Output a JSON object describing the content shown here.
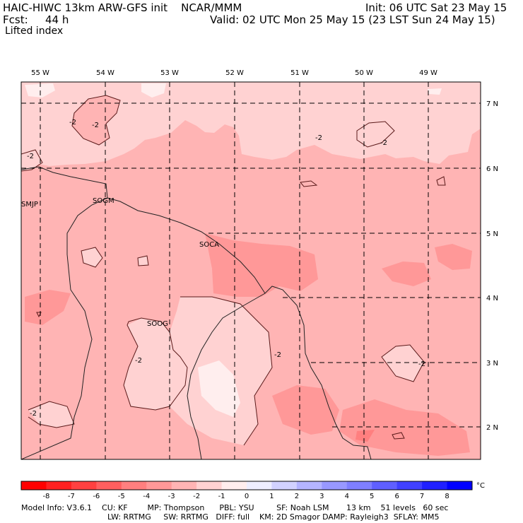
{
  "header": {
    "model_title": "HAIC-HIWC 13km ARW-GFS init    NCAR/MMM",
    "init": "Init: 06 UTC Sat 23 May 15",
    "fcst_label": "Fcst:",
    "fcst_hours": "44 h",
    "valid": "Valid: 02 UTC Mon 25 May 15 (23 LST Sun 24 May 15)",
    "field_name": "Lifted index"
  },
  "map": {
    "lon_labels": [
      "55 W",
      "54 W",
      "53 W",
      "52 W",
      "51 W",
      "50 W",
      "49 W"
    ],
    "lat_labels": [
      "7 N",
      "6 N",
      "5 N",
      "4 N",
      "3 N",
      "2 N"
    ],
    "stations": [
      "SMJP",
      "SOGM",
      "SOCA",
      "SOOG"
    ],
    "contour_labels": [
      "-2",
      "-2",
      "-2",
      "-2",
      "-2",
      "-2",
      "-2",
      "-2",
      "-2"
    ]
  },
  "colorbar": {
    "tick_labels": [
      "-8",
      "-7",
      "-6",
      "-5",
      "-4",
      "-3",
      "-2",
      "-1",
      "0",
      "1",
      "2",
      "3",
      "4",
      "5",
      "6",
      "7",
      "8"
    ],
    "unit": "°C",
    "colors": [
      "#ff0000",
      "#ff2020",
      "#ff4040",
      "#ff5f5f",
      "#ff7f7f",
      "#ff9898",
      "#ffb4b4",
      "#ffd2d2",
      "#ffeeee",
      "#eeeeff",
      "#d2d2ff",
      "#b4b4ff",
      "#9898ff",
      "#7f7fff",
      "#5f5fff",
      "#4040ff",
      "#2020ff",
      "#0000ff"
    ]
  },
  "footer": {
    "line1": "Model Info: V3.6.1    CU: KF        MP: Thompson      PBL: YSU         SF: Noah LSM       13 km    51 levels   60 sec",
    "line2": "LW: RRTMG     SW: RRTMG   DIFF: full    KM: 2D Smagor DAMP: Rayleigh3  SFLAY: MM5"
  }
}
